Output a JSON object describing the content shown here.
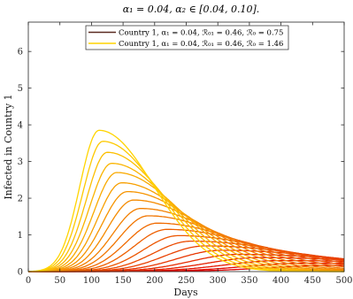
{
  "chart_data": {
    "type": "line",
    "title": "α₁ = 0.04, α₂ ∈ [0.04, 0.10].",
    "xlabel": "Days",
    "ylabel": "Infected in Country 1",
    "xlim": [
      0,
      500
    ],
    "ylim": [
      0,
      6.8
    ],
    "xticks": [
      "0",
      "50",
      "100",
      "150",
      "200",
      "250",
      "300",
      "350",
      "400",
      "450",
      "500"
    ],
    "yticks": [
      "0",
      "1",
      "2",
      "3",
      "4",
      "5",
      "6"
    ],
    "grid": false,
    "legend_position": "top-center",
    "legend": [
      {
        "label": "Country 1, α₁ = 0.04, ℛ₀₁ = 0.46, ℛ₀ = 0.75",
        "color": "#5a2a20"
      },
      {
        "label": "Country 1, α₁ = 0.04, ℛ₀₁ = 0.46, ℛ₀ = 1.46",
        "color": "#ffd400"
      }
    ],
    "color_start": "#e00000",
    "color_end": "#ffd400",
    "series": [
      {
        "peak_day": 112,
        "peak_value": 3.85
      },
      {
        "peak_day": 118,
        "peak_value": 3.55
      },
      {
        "peak_day": 125,
        "peak_value": 3.25
      },
      {
        "peak_day": 132,
        "peak_value": 2.95
      },
      {
        "peak_day": 140,
        "peak_value": 2.7
      },
      {
        "peak_day": 148,
        "peak_value": 2.42
      },
      {
        "peak_day": 157,
        "peak_value": 2.18
      },
      {
        "peak_day": 167,
        "peak_value": 1.95
      },
      {
        "peak_day": 178,
        "peak_value": 1.72
      },
      {
        "peak_day": 190,
        "peak_value": 1.52
      },
      {
        "peak_day": 204,
        "peak_value": 1.32
      },
      {
        "peak_day": 220,
        "peak_value": 1.15
      },
      {
        "peak_day": 238,
        "peak_value": 0.98
      },
      {
        "peak_day": 258,
        "peak_value": 0.83
      },
      {
        "peak_day": 280,
        "peak_value": 0.7
      },
      {
        "peak_day": 305,
        "peak_value": 0.58
      },
      {
        "peak_day": 333,
        "peak_value": 0.47
      },
      {
        "peak_day": 365,
        "peak_value": 0.38
      },
      {
        "peak_day": 400,
        "peak_value": 0.3
      },
      {
        "peak_day": 440,
        "peak_value": 0.23
      },
      {
        "peak_day": 485,
        "peak_value": 0.17
      }
    ]
  }
}
